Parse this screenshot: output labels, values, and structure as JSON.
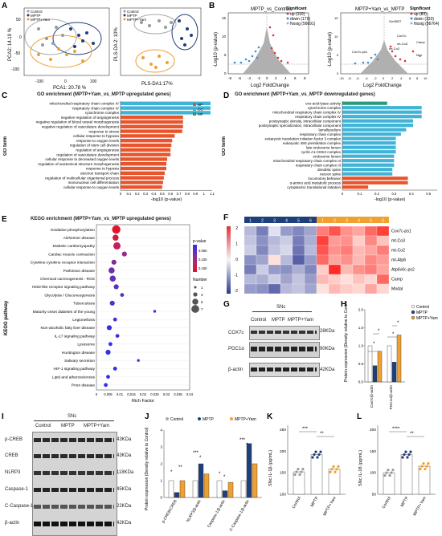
{
  "panelA": {
    "letter": "A",
    "pca": {
      "xlabel": "PCA1: 20.78 %",
      "ylabel": "PCA2: 14.19 %",
      "xticks": [
        "-100",
        "0",
        "100"
      ],
      "yticks": [
        "50",
        "0",
        "-50",
        "-100"
      ],
      "legend": [
        "Control",
        "MPTP",
        "MPTP+Yam"
      ]
    },
    "plsda": {
      "xlabel": "PLS-DA1:17%",
      "ylabel": "PLS-DA 2: 10%",
      "legend": [
        "Control",
        "MPTP",
        "MPTP+Yam"
      ]
    }
  },
  "panelB": {
    "letter": "B",
    "left": {
      "title": "MPTP_vs_Control",
      "xlabel": "Log2 FoldChange",
      "ylabel": "-Log10 (p-value)",
      "xticks": [
        "-8",
        "-6",
        "-4",
        "-2",
        "0",
        "2",
        "4",
        "6",
        "8"
      ],
      "yticks": [
        "0",
        "5",
        "10",
        "15"
      ],
      "legend_title": "Significant",
      "legend": [
        "up (110)",
        "down (179)",
        "Nosig (56691)"
      ]
    },
    "right": {
      "title": "MPTP+Yam_vs_MPTP",
      "xlabel": "Log2 FoldChange",
      "ylabel": "-Log10 (p-value)",
      "xticks": [
        "-10",
        "-8",
        "-6",
        "-4",
        "-2",
        "0",
        "2",
        "4",
        "6",
        "8",
        "10"
      ],
      "yticks": [
        "0",
        "5",
        "10",
        "15"
      ],
      "legend_title": "Significant",
      "legend": [
        "up (83)",
        "down (133)",
        "Nosig (56764)"
      ],
      "genes": [
        "Gm5537",
        "Cox7c",
        "mt-Co3",
        "mt-Co2",
        "Camp",
        "Ngp",
        "Cox7c-ps1"
      ]
    }
  },
  "panelC": {
    "letter": "C",
    "title": "GO enrichment (MPTP+Yam_vs_MPTP upregulated genes)",
    "ylabel": "GO term",
    "xlabel": "-log10 (p-value)",
    "xticks": [
      "0",
      "0.1",
      "0.2",
      "0.3",
      "0.4",
      "0.5",
      "0.6",
      "0.7",
      "0.8",
      "0.9",
      "1",
      "1.1"
    ],
    "legend": [
      "BP",
      "CC",
      "MF"
    ],
    "terms": [
      "mitochondrial respiratory chain complex IV",
      "respiratory chain complex IV",
      "cytochrome complex",
      "negative regulation of angiogenesis",
      "negative regulation of blood vessel morphogenesis",
      "negative regulation of vasculature development",
      "response to stress",
      "cellular response to hypoxia",
      "response to oxygen levels",
      "regulation of stem cell division",
      "regulation of angiogenesis",
      "regulation of vasculature development",
      "cellular response to decreased oxygen levels",
      "regulation of anatomical structure morphogenesis",
      "response to hypoxia",
      "electron transport chain",
      "regulation of multicellular organismal process",
      "mononuclear cell differentiation",
      "cellular response to oxygen levels"
    ]
  },
  "panelD": {
    "letter": "D",
    "title": "GO enrichment (MPTP+Yam_vs_MPTP downregulated genes)",
    "ylabel": "GO term",
    "xlabel": "-log10 (p-value)",
    "xticks": [
      "0",
      "0.1",
      "0.2",
      "0.3",
      "0.4",
      "0.5"
    ],
    "terms": [
      "oxo-acid-lyase activity",
      "cytochrome complex",
      "mitochondrial respiratory chain complex IV",
      "respiratory chain complex IV",
      "postsynaptic density, intracellular component",
      "postsynaptic specialization, intracellular component",
      "lamellipodium",
      "respiratory chain complex",
      "eukaryotic translation initiation factor 3 complex",
      "eukaryotic 48S preinitiation complex",
      "late endosome lumen",
      "cyclin A1-CDK2 complex",
      "endosome lumen",
      "mitochondrial respiratory chain complex III",
      "respiratory chain complex III",
      "dendritic spine",
      "neuron spine",
      "locomotory behavior",
      "α-amino acid metabolic process",
      "cytoplasmic translational initiation"
    ]
  },
  "panelE": {
    "letter": "E",
    "title": "KEGG enrichment (MPTP+Yam_vs_MPTP upregulated genes)",
    "ylabel": "KEGG pathway",
    "xlabel": "Rich Factor",
    "xticks": [
      "0",
      "0.005",
      "0.01",
      "0.015",
      "0.02",
      "0.025",
      "0.03",
      "0.035",
      "0.04"
    ],
    "pvalue_title": "p-value",
    "pvalue_ticks": [
      "0.050",
      "0.100",
      "0.150"
    ],
    "number_title": "Number",
    "number_ticks": [
      "1",
      "3",
      "5",
      "7"
    ],
    "pathways": [
      "Oxidative phosphorylation",
      "Alzheimer disease",
      "Diabetic cardiomyopathy",
      "Cardiac muscle contraction",
      "Cytokine-cytokine receptor interaction",
      "Parkinson disease",
      "Chemical carcinogenesis - ROS",
      "NOD-like receptor signaling pathway",
      "Glycolysis / Gluconeogenesis",
      "Tuberculosis",
      "Maturity onset diabetes of the young",
      "Legionellosis",
      "Non-alcoholic fatty liver disease",
      "IL-17 signaling pathway",
      "Lysosome",
      "Huntington disease",
      "Salivary secretion",
      "HIF-1 signaling pathway",
      "Lipid and atherosclerosis",
      "Prion disease"
    ]
  },
  "panelF": {
    "letter": "F",
    "groups": [
      "MPTP",
      "MPTP+Yam"
    ],
    "samples": [
      "1",
      "2",
      "3",
      "4",
      "5",
      "6"
    ],
    "scale": [
      "2",
      "1",
      "0",
      "-1",
      "-2"
    ],
    "genes": [
      "Cox7c-ps1",
      "mt-Co3",
      "mt-Co2",
      "mt-Atp6",
      "Atp6v0c-ps2",
      "Camp",
      "Mndal"
    ]
  },
  "panelG": {
    "letter": "G",
    "region": "SNc",
    "groups": [
      "Control",
      "MPTP",
      "MPTP+Yam"
    ],
    "rows": [
      "COX7c",
      "PGC1α",
      "β-actin"
    ],
    "sizes": [
      "28KDa",
      "90KDa",
      "42KDa"
    ]
  },
  "panelH": {
    "letter": "H",
    "ylabel": "Protein expression (Density relative to Control)",
    "yticks": [
      "0.0",
      "0.5",
      "1.0",
      "1.5",
      "2.0"
    ],
    "cats": [
      "Cox7c/β-actin",
      "PGC1α/β-actin"
    ],
    "legend": [
      "Control",
      "MPTP",
      "MPTP+Yam"
    ],
    "sig": "*"
  },
  "panelI": {
    "letter": "I",
    "region": "SNc",
    "groups": [
      "Control",
      "MPTP",
      "MPTP+Yam"
    ],
    "rows": [
      "p-CREB",
      "CREB",
      "NLRP3",
      "Caspase-1",
      "C-Caspase-1",
      "β-actin"
    ],
    "sizes": [
      "43KDa",
      "43KDa",
      "118KDa",
      "45KDa",
      "22KDa",
      "42KDa"
    ]
  },
  "panelJ": {
    "letter": "J",
    "ylabel": "Protein expression (Density relative to Control)",
    "yticks": [
      "0",
      "1",
      "2",
      "3",
      "4"
    ],
    "legend": [
      "Control",
      "MPTP",
      "MPTP+Yam"
    ],
    "cats": [
      "p-CREB/CREB",
      "NLRP3/β-actin",
      "Caspase-1/β-actin",
      "C-Caspase-1/β-actin"
    ],
    "sig": [
      "*",
      "**",
      "***",
      "*",
      "*",
      "*",
      "***",
      "*"
    ]
  },
  "panelK": {
    "letter": "K",
    "ylabel": "SNc IL-1β (pg/mL)",
    "yticks": [
      "100",
      "150",
      "200",
      "250"
    ],
    "cats": [
      "Control",
      "MPTP",
      "MPTP+Yam"
    ],
    "sig": [
      "***",
      "**"
    ]
  },
  "panelL": {
    "letter": "L",
    "ylabel": "SNc IL-18 (pg/mL)",
    "yticks": [
      "50",
      "100",
      "150",
      "200"
    ],
    "cats": [
      "Control",
      "MPTP",
      "MPTP+Yam"
    ],
    "sig": [
      "****",
      "**"
    ]
  },
  "colors": {
    "control": "#9a9a9a",
    "mptp": "#1f3f7a",
    "yam": "#f0a030",
    "up": "#e03030",
    "down": "#3a8fd8",
    "nosig": "#b0b0b0",
    "bp": "#e8542c",
    "cc": "#3fb4d8",
    "mf": "#2a9a7a"
  }
}
